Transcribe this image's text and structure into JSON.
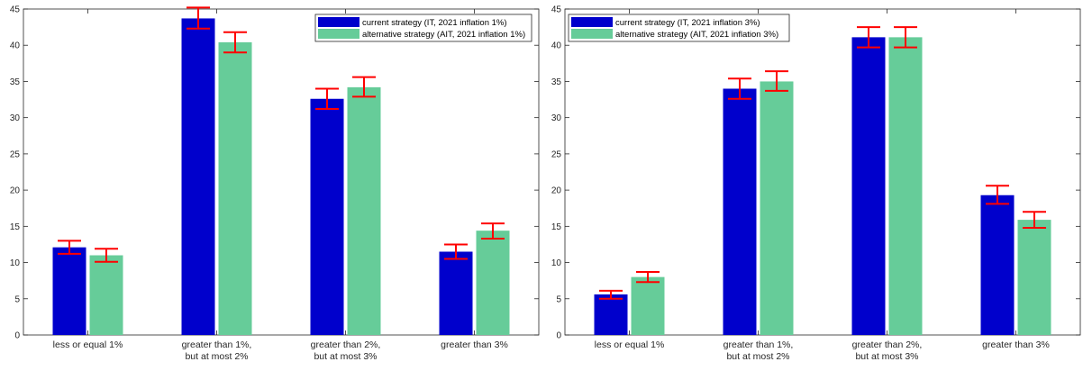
{
  "colors": {
    "series_a": "#0000cc",
    "series_b": "#66cc99",
    "error_bar": "#ff0000",
    "axis": "#262626",
    "background": "#ffffff"
  },
  "chart_data": [
    {
      "type": "bar",
      "categories": [
        [
          "less or equal 1%"
        ],
        [
          "greater than 1%,",
          "but at most 2%"
        ],
        [
          "greater than 2%,",
          "but at most 3%"
        ],
        [
          "greater than 3%"
        ]
      ],
      "ylim": [
        0,
        45
      ],
      "yticks": [
        0,
        5,
        10,
        15,
        20,
        25,
        30,
        35,
        40,
        45
      ],
      "grid": false,
      "legend_position": "top-right",
      "series": [
        {
          "name": "current strategy (IT, 2021 inflation 1%)",
          "color": "#0000cc",
          "values": [
            12.1,
            43.7,
            32.6,
            11.5
          ],
          "err_low": [
            11.2,
            42.3,
            31.2,
            10.5
          ],
          "err_high": [
            13.0,
            45.2,
            34.0,
            12.5
          ]
        },
        {
          "name": "alternative strategy (AIT, 2021 inflation 1%)",
          "color": "#66cc99",
          "values": [
            11.0,
            40.4,
            34.2,
            14.4
          ],
          "err_low": [
            10.1,
            39.0,
            32.9,
            13.3
          ],
          "err_high": [
            11.9,
            41.8,
            35.6,
            15.4
          ]
        }
      ]
    },
    {
      "type": "bar",
      "categories": [
        [
          "less or equal 1%"
        ],
        [
          "greater than 1%,",
          "but at most 2%"
        ],
        [
          "greater than 2%,",
          "but at most 3%"
        ],
        [
          "greater than 3%"
        ]
      ],
      "ylim": [
        0,
        45
      ],
      "yticks": [
        0,
        5,
        10,
        15,
        20,
        25,
        30,
        35,
        40,
        45
      ],
      "grid": false,
      "legend_position": "top-left",
      "series": [
        {
          "name": "current strategy (IT, 2021 inflation 3%)",
          "color": "#0000cc",
          "values": [
            5.6,
            34.0,
            41.1,
            19.3
          ],
          "err_low": [
            5.0,
            32.6,
            39.7,
            18.1
          ],
          "err_high": [
            6.1,
            35.4,
            42.5,
            20.6
          ]
        },
        {
          "name": "alternative strategy (AIT, 2021 inflation 3%)",
          "color": "#66cc99",
          "values": [
            8.0,
            35.0,
            41.1,
            15.9
          ],
          "err_low": [
            7.3,
            33.7,
            39.7,
            14.8
          ],
          "err_high": [
            8.7,
            36.4,
            42.5,
            17.0
          ]
        }
      ]
    }
  ]
}
